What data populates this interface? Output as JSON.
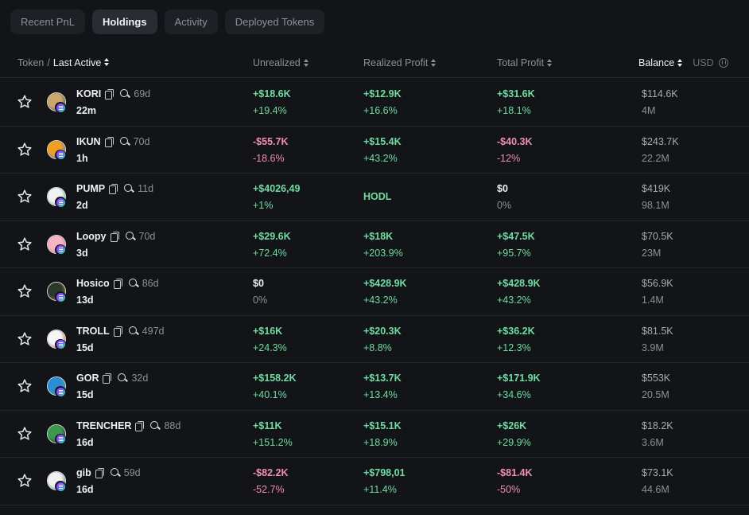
{
  "tabs": [
    {
      "label": "Recent PnL",
      "active": false
    },
    {
      "label": "Holdings",
      "active": true
    },
    {
      "label": "Activity",
      "active": false
    },
    {
      "label": "Deployed Tokens",
      "active": false
    }
  ],
  "header": {
    "token": "Token",
    "separator": "/",
    "last_active": "Last Active",
    "unrealized": "Unrealized",
    "realized": "Realized Profit",
    "total": "Total Profit",
    "balance": "Balance",
    "currency": "USD"
  },
  "colors": {
    "positive": "#6fdca3",
    "negative": "#f08fb0",
    "neutral": "#f0f1f4",
    "muted": "#8d909a"
  },
  "rows": [
    {
      "name": "KORI",
      "age": "69d",
      "last_active": "22m",
      "unrealized": "+$18.6K",
      "unrealized_pct": "+19.4%",
      "un_sign": "pos",
      "realized": "+$12.9K",
      "realized_pct": "+16.6%",
      "re_sign": "pos",
      "total": "+$31.6K",
      "total_pct": "+18.1%",
      "to_sign": "pos",
      "balance": "$114.6K",
      "amount": "4M",
      "avatar_icon": "kori-token-icon",
      "avatar_colors": [
        "#c9a86a",
        "#3a3528"
      ]
    },
    {
      "name": "IKUN",
      "age": "70d",
      "last_active": "1h",
      "unrealized": "-$55.7K",
      "unrealized_pct": "-18.6%",
      "un_sign": "neg",
      "realized": "+$15.4K",
      "realized_pct": "+43.2%",
      "re_sign": "pos",
      "total": "-$40.3K",
      "total_pct": "-12%",
      "to_sign": "neg",
      "balance": "$243.7K",
      "amount": "22.2M",
      "avatar_icon": "ikun-token-icon",
      "avatar_colors": [
        "#f0a020",
        "#2d6bd6"
      ]
    },
    {
      "name": "PUMP",
      "age": "11d",
      "last_active": "2d",
      "unrealized": "+$4026,49",
      "unrealized_pct": "+1%",
      "un_sign": "pos",
      "realized": "HODL",
      "realized_pct": "",
      "re_sign": "hodl",
      "total": "$0",
      "total_pct": "0%",
      "to_sign": "zero",
      "balance": "$419K",
      "amount": "98.1M",
      "avatar_icon": "pump-token-icon",
      "avatar_colors": [
        "#f2f2f2",
        "#2fbf6b"
      ]
    },
    {
      "name": "Loopy",
      "age": "70d",
      "last_active": "3d",
      "unrealized": "+$29.6K",
      "unrealized_pct": "+72.4%",
      "un_sign": "pos",
      "realized": "+$18K",
      "realized_pct": "+203.9%",
      "re_sign": "pos",
      "total": "+$47.5K",
      "total_pct": "+95.7%",
      "to_sign": "pos",
      "balance": "$70.5K",
      "amount": "23M",
      "avatar_icon": "loopy-token-icon",
      "avatar_colors": [
        "#f4b6c2",
        "#e86a8a"
      ]
    },
    {
      "name": "Hosico",
      "age": "86d",
      "last_active": "13d",
      "unrealized": "$0",
      "unrealized_pct": "0%",
      "un_sign": "zero",
      "realized": "+$428.9K",
      "realized_pct": "+43.2%",
      "re_sign": "pos",
      "total": "+$428.9K",
      "total_pct": "+43.2%",
      "to_sign": "pos",
      "balance": "$56.9K",
      "amount": "1.4M",
      "avatar_icon": "hosico-token-icon",
      "avatar_colors": [
        "#2a3a2a",
        "#c98a2a"
      ]
    },
    {
      "name": "TROLL",
      "age": "497d",
      "last_active": "15d",
      "unrealized": "+$16K",
      "unrealized_pct": "+24.3%",
      "un_sign": "pos",
      "realized": "+$20.3K",
      "realized_pct": "+8.8%",
      "re_sign": "pos",
      "total": "+$36.2K",
      "total_pct": "+12.3%",
      "to_sign": "pos",
      "balance": "$81.5K",
      "amount": "3.9M",
      "avatar_icon": "troll-token-icon",
      "avatar_colors": [
        "#f5f5f5",
        "#c0303a"
      ]
    },
    {
      "name": "GOR",
      "age": "32d",
      "last_active": "15d",
      "unrealized": "+$158.2K",
      "unrealized_pct": "+40.1%",
      "un_sign": "pos",
      "realized": "+$13.7K",
      "realized_pct": "+13.4%",
      "re_sign": "pos",
      "total": "+$171.9K",
      "total_pct": "+34.6%",
      "to_sign": "pos",
      "balance": "$553K",
      "amount": "20.5M",
      "avatar_icon": "gor-token-icon",
      "avatar_colors": [
        "#2a8fd6",
        "#3bb36a"
      ]
    },
    {
      "name": "TRENCHER",
      "age": "88d",
      "last_active": "16d",
      "unrealized": "+$11K",
      "unrealized_pct": "+151.2%",
      "un_sign": "pos",
      "realized": "+$15.1K",
      "realized_pct": "+18.9%",
      "re_sign": "pos",
      "total": "+$26K",
      "total_pct": "+29.9%",
      "to_sign": "pos",
      "balance": "$18.2K",
      "amount": "3.6M",
      "avatar_icon": "trencher-token-icon",
      "avatar_colors": [
        "#3a9a4a",
        "#1a1a1a"
      ]
    },
    {
      "name": "gib",
      "age": "59d",
      "last_active": "16d",
      "unrealized": "-$82.2K",
      "unrealized_pct": "-52.7%",
      "un_sign": "neg",
      "realized": "+$798,01",
      "realized_pct": "+11.4%",
      "re_sign": "pos",
      "total": "-$81.4K",
      "total_pct": "-50%",
      "to_sign": "neg",
      "balance": "$73.1K",
      "amount": "44.6M",
      "avatar_icon": "gib-token-icon",
      "avatar_colors": [
        "#f0f0f0",
        "#1f8a4a"
      ]
    }
  ]
}
